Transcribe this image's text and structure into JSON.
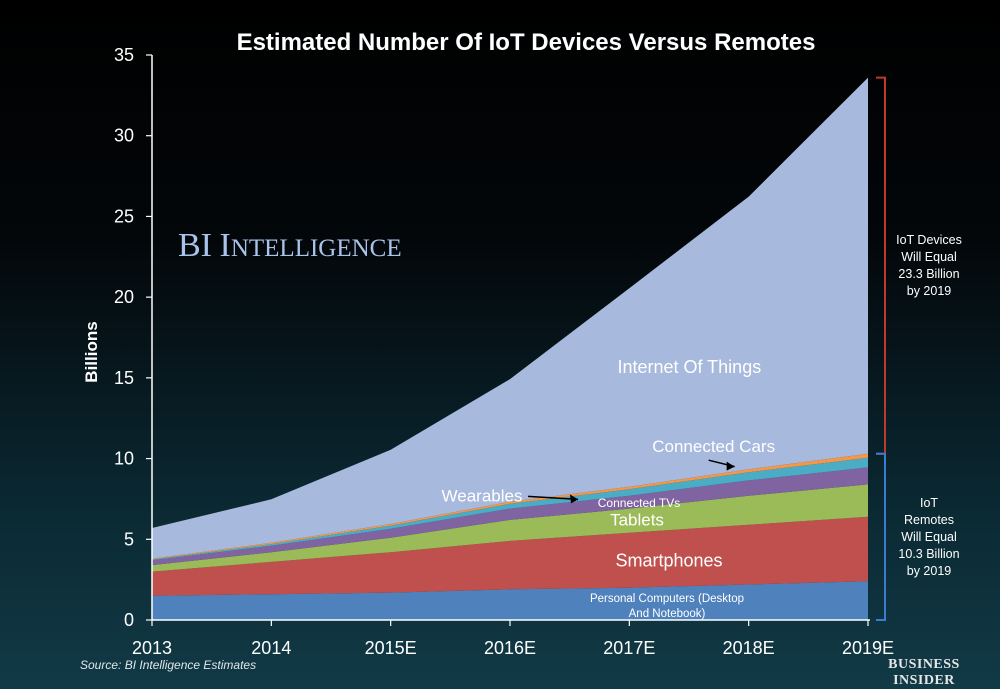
{
  "chart_data": {
    "type": "area",
    "stacked": true,
    "title": "Estimated Number Of IoT Devices Versus Remotes",
    "ylabel": "Billions",
    "xlabel": "",
    "ylim": [
      0,
      35
    ],
    "yticks": [
      "0",
      "5",
      "10",
      "15",
      "20",
      "25",
      "30",
      "35"
    ],
    "categories": [
      "2013",
      "2014",
      "2015E",
      "2016E",
      "2017E",
      "2018E",
      "2019E"
    ],
    "grid": false,
    "series": [
      {
        "name": "Personal Computers (Desktop And Notebook)",
        "color": "#4f81bd",
        "values": [
          1.5,
          1.6,
          1.7,
          1.9,
          2.0,
          2.2,
          2.4
        ]
      },
      {
        "name": "Smartphones",
        "color": "#c0504d",
        "values": [
          1.5,
          2.0,
          2.5,
          3.0,
          3.4,
          3.7,
          4.0
        ]
      },
      {
        "name": "Tablets",
        "color": "#9bbb59",
        "values": [
          0.4,
          0.6,
          0.9,
          1.3,
          1.5,
          1.8,
          2.0
        ]
      },
      {
        "name": "Connected TVs",
        "color": "#8064a2",
        "values": [
          0.3,
          0.4,
          0.55,
          0.7,
          0.8,
          0.95,
          1.05
        ]
      },
      {
        "name": "Wearables",
        "color": "#4bacc6",
        "values": [
          0.05,
          0.1,
          0.2,
          0.3,
          0.4,
          0.5,
          0.6
        ]
      },
      {
        "name": "Connected Cars",
        "color": "#f79646",
        "values": [
          0.05,
          0.08,
          0.1,
          0.12,
          0.15,
          0.18,
          0.25
        ]
      },
      {
        "name": "Internet Of Things",
        "color": "#a7b9dc",
        "values": [
          1.9,
          2.7,
          4.6,
          7.6,
          12.3,
          16.9,
          23.3
        ]
      }
    ],
    "labels": {
      "iot": "Internet Of Things",
      "cars": "Connected Cars",
      "wearables": "Wearables",
      "tvs": "Connected TVs",
      "tablets": "Tablets",
      "smartphones": "Smartphones",
      "pc_line1": "Personal Computers (Desktop",
      "pc_line2": "And Notebook)"
    },
    "annotations": {
      "iot_devices": [
        "IoT Devices",
        "Will Equal",
        "23.3 Billion",
        "by 2019"
      ],
      "iot_remotes": [
        "IoT",
        "Remotes",
        "Will Equal",
        "10.3 Billion",
        "by 2019"
      ]
    },
    "brand": "BI Intelligence",
    "source": "Source: BI Intelligence Estimates",
    "logo": [
      "BUSINESS",
      "INSIDER"
    ],
    "colors": {
      "iot_bracket": "#c0392b",
      "remotes_bracket": "#3a7bd5"
    }
  }
}
